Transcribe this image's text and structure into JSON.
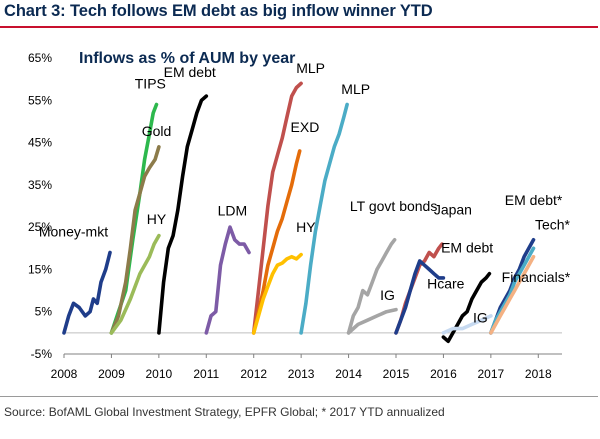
{
  "header": {
    "title": "Chart 3: Tech follows EM debt as big inflow winner YTD"
  },
  "footer": {
    "source": "Source: BofAML Global Investment Strategy, EPFR Global; * 2017 YTD annualized"
  },
  "chart_data": {
    "type": "line",
    "title": "Inflows as % of AUM by year",
    "xlabel": "",
    "ylabel": "",
    "xlim": [
      2008,
      2018.5
    ],
    "ylim": [
      -5,
      65
    ],
    "x_ticks": [
      2008,
      2009,
      2010,
      2011,
      2012,
      2013,
      2014,
      2015,
      2016,
      2017,
      2018
    ],
    "x_tick_labels": [
      "2008",
      "2009",
      "2010",
      "2011",
      "2012",
      "2013",
      "2014",
      "2015",
      "2016",
      "2017",
      "2018"
    ],
    "y_ticks": [
      65,
      55,
      45,
      35,
      25,
      15,
      5,
      -5
    ],
    "y_tick_labels": [
      "65%",
      "55%",
      "45%",
      "35%",
      "25%",
      "15%",
      "5%",
      "-5%"
    ],
    "grid": false,
    "legend": "none (series labelled directly on chart)",
    "series": [
      {
        "name": "Money-mkt",
        "color": "#1f3d8a",
        "x": [
          2008.0,
          2008.1,
          2008.2,
          2008.32,
          2008.45,
          2008.55,
          2008.62,
          2008.7,
          2008.78,
          2008.88,
          2008.97
        ],
        "y": [
          0,
          4,
          7,
          6,
          4,
          5,
          8,
          7,
          12,
          15,
          19
        ]
      },
      {
        "name": "TIPS",
        "color": "#2db84d",
        "x": [
          2009.0,
          2009.15,
          2009.3,
          2009.45,
          2009.6,
          2009.7,
          2009.8,
          2009.88,
          2009.95
        ],
        "y": [
          0,
          5,
          10,
          22,
          33,
          41,
          47,
          52,
          54
        ]
      },
      {
        "name": "Gold",
        "color": "#8c7b4a",
        "x": [
          2009.0,
          2009.15,
          2009.3,
          2009.4,
          2009.5,
          2009.6,
          2009.7,
          2009.8,
          2009.92,
          2010.0
        ],
        "y": [
          0,
          4,
          12,
          20,
          29,
          33,
          37,
          39,
          41,
          44
        ]
      },
      {
        "name": "HY",
        "color": "#9bbb59",
        "x": [
          2009.0,
          2009.2,
          2009.4,
          2009.6,
          2009.8,
          2009.9,
          2010.0
        ],
        "y": [
          0,
          3,
          8,
          14,
          18,
          21,
          23
        ]
      },
      {
        "name": "EM debt",
        "color": "#000000",
        "x": [
          2010.0,
          2010.1,
          2010.2,
          2010.3,
          2010.4,
          2010.5,
          2010.6,
          2010.7,
          2010.8,
          2010.9,
          2011.0
        ],
        "y": [
          0,
          12,
          20,
          23,
          29,
          37,
          44,
          48,
          52,
          55,
          56
        ]
      },
      {
        "name": "LDM",
        "color": "#7d5ba6",
        "x": [
          2011.0,
          2011.1,
          2011.2,
          2011.3,
          2011.4,
          2011.5,
          2011.6,
          2011.7,
          2011.8,
          2011.9
        ],
        "y": [
          0,
          4,
          5,
          16,
          21,
          25,
          22,
          21,
          21,
          19
        ]
      },
      {
        "name": "MLP",
        "color": "#c0504d",
        "x": [
          2012.0,
          2012.1,
          2012.2,
          2012.3,
          2012.4,
          2012.5,
          2012.6,
          2012.7,
          2012.8,
          2012.9,
          2013.0
        ],
        "y": [
          0,
          10,
          20,
          30,
          38,
          42,
          46,
          51,
          56,
          58,
          59
        ]
      },
      {
        "name": "EXD",
        "color": "#e46c0a",
        "x": [
          2012.0,
          2012.1,
          2012.2,
          2012.3,
          2012.4,
          2012.5,
          2012.6,
          2012.7,
          2012.8,
          2012.9,
          2012.97
        ],
        "y": [
          0,
          5,
          10,
          16,
          20,
          24,
          27,
          31,
          35,
          40,
          43
        ]
      },
      {
        "name": "HY",
        "color": "#ffc000",
        "x": [
          2012.0,
          2012.1,
          2012.2,
          2012.3,
          2012.4,
          2012.5,
          2012.6,
          2012.7,
          2012.8,
          2012.9,
          2013.0
        ],
        "y": [
          0,
          4,
          8,
          11,
          14,
          16,
          16.5,
          17.5,
          18,
          17.5,
          18.5
        ]
      },
      {
        "name": "MLP",
        "color": "#4bacc6",
        "x": [
          2013.0,
          2013.1,
          2013.2,
          2013.3,
          2013.4,
          2013.5,
          2013.6,
          2013.7,
          2013.8,
          2013.9,
          2013.97
        ],
        "y": [
          0,
          7,
          16,
          24,
          30,
          36,
          40,
          44,
          47,
          51,
          54
        ]
      },
      {
        "name": "LT govt bonds",
        "color": "#a5a5a5",
        "x": [
          2014.0,
          2014.1,
          2014.2,
          2014.3,
          2014.4,
          2014.5,
          2014.6,
          2014.7,
          2014.8,
          2014.9,
          2014.97
        ],
        "y": [
          0,
          4,
          6,
          10,
          9,
          12,
          15,
          17,
          19,
          21,
          22
        ]
      },
      {
        "name": "IG",
        "color": "#a5a5a5",
        "x": [
          2014.0,
          2014.2,
          2014.4,
          2014.6,
          2014.8,
          2015.0
        ],
        "y": [
          0,
          2,
          3,
          4,
          5,
          5.5
        ]
      },
      {
        "name": "Japan",
        "color": "#c0504d",
        "x": [
          2015.0,
          2015.1,
          2015.2,
          2015.3,
          2015.4,
          2015.5,
          2015.6,
          2015.7,
          2015.8,
          2015.9,
          2015.97
        ],
        "y": [
          0,
          3,
          7,
          10,
          13,
          16,
          17,
          19,
          18,
          20,
          21
        ]
      },
      {
        "name": "Hcare",
        "color": "#1f3d8a",
        "x": [
          2015.0,
          2015.1,
          2015.2,
          2015.3,
          2015.4,
          2015.5,
          2015.6,
          2015.7,
          2015.8,
          2015.9,
          2016.0
        ],
        "y": [
          0,
          3,
          6,
          10,
          14,
          17,
          16,
          15,
          14,
          13,
          13
        ]
      },
      {
        "name": "EM debt",
        "color": "#000000",
        "x": [
          2016.0,
          2016.1,
          2016.2,
          2016.3,
          2016.4,
          2016.5,
          2016.6,
          2016.7,
          2016.8,
          2016.9,
          2016.97
        ],
        "y": [
          -1,
          -2,
          0,
          2,
          4,
          5,
          8,
          10,
          12,
          13,
          14
        ]
      },
      {
        "name": "IG",
        "color": "#c6d9f0",
        "x": [
          2016.0,
          2016.2,
          2016.4,
          2016.6,
          2016.8,
          2017.0
        ],
        "y": [
          0,
          1,
          1,
          2,
          3,
          4
        ]
      },
      {
        "name": "EM debt*",
        "color": "#1f3d8a",
        "x": [
          2017.0,
          2017.1,
          2017.2,
          2017.3,
          2017.4,
          2017.5,
          2017.6,
          2017.7,
          2017.8,
          2017.9
        ],
        "y": [
          0,
          3,
          6,
          8,
          10,
          13,
          15,
          18,
          20,
          22
        ]
      },
      {
        "name": "Tech*",
        "color": "#4bacc6",
        "x": [
          2017.0,
          2017.1,
          2017.2,
          2017.3,
          2017.4,
          2017.5,
          2017.6,
          2017.7,
          2017.8,
          2017.9
        ],
        "y": [
          0,
          3,
          5,
          7,
          9,
          12,
          14,
          16,
          18,
          20
        ]
      },
      {
        "name": "Financials*",
        "color": "#f4b183",
        "x": [
          2017.0,
          2017.1,
          2017.2,
          2017.3,
          2017.4,
          2017.5,
          2017.6,
          2017.7,
          2017.8,
          2017.9
        ],
        "y": [
          0,
          2,
          4,
          6,
          8,
          10,
          12,
          14,
          16,
          18
        ]
      }
    ],
    "annotations": [
      {
        "text": "Money-mkt",
        "x": 2008.2,
        "y": 22.8
      },
      {
        "text": "TIPS",
        "x": 2009.82,
        "y": 57.8
      },
      {
        "text": "Gold",
        "x": 2009.95,
        "y": 46.5
      },
      {
        "text": "HY",
        "x": 2009.95,
        "y": 25.8
      },
      {
        "text": "EM debt",
        "x": 2010.65,
        "y": 60.5
      },
      {
        "text": "LDM",
        "x": 2011.55,
        "y": 27.8
      },
      {
        "text": "MLP",
        "x": 2013.2,
        "y": 61.5
      },
      {
        "text": "EXD",
        "x": 2013.08,
        "y": 47.5
      },
      {
        "text": "HY",
        "x": 2013.1,
        "y": 23.8
      },
      {
        "text": "MLP",
        "x": 2014.15,
        "y": 56.5
      },
      {
        "text": "LT govt bonds",
        "x": 2014.95,
        "y": 28.8
      },
      {
        "text": "IG",
        "x": 2014.82,
        "y": 7.8
      },
      {
        "text": "Japan",
        "x": 2016.2,
        "y": 28
      },
      {
        "text": "Hcare",
        "x": 2016.05,
        "y": 10.5
      },
      {
        "text": "EM debt",
        "x": 2016.5,
        "y": 19
      },
      {
        "text": "IG",
        "x": 2016.78,
        "y": 2.5
      },
      {
        "text": "EM debt*",
        "x": 2017.9,
        "y": 30.2
      },
      {
        "text": "Tech*",
        "x": 2018.3,
        "y": 24.5
      },
      {
        "text": "Financials*",
        "x": 2017.95,
        "y": 12
      }
    ]
  }
}
